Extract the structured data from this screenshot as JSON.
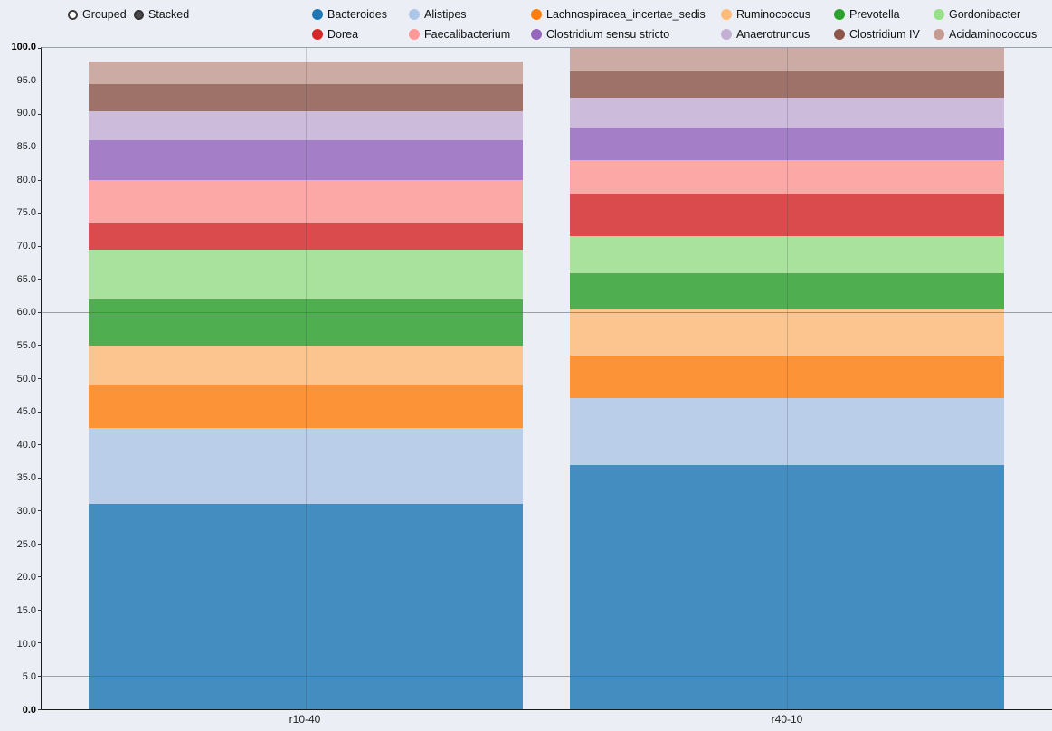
{
  "controls": {
    "options": [
      {
        "label": "Grouped",
        "selected": false
      },
      {
        "label": "Stacked",
        "selected": true
      }
    ]
  },
  "chart_data": {
    "type": "bar",
    "variant": "stacked-percentage",
    "title": "",
    "xlabel": "",
    "ylabel": "",
    "categories": [
      "r10-40",
      "r40-10"
    ],
    "series": [
      {
        "name": "Bacteroides",
        "color": "#1f77b4",
        "values": [
          31.0,
          37.0
        ]
      },
      {
        "name": "Alistipes",
        "color": "#aec7e8",
        "values": [
          11.5,
          10.0
        ]
      },
      {
        "name": "Lachnospiracea_incertae_sedis",
        "color": "#ff7f0e",
        "values": [
          6.5,
          6.5
        ]
      },
      {
        "name": "Ruminococcus",
        "color": "#ffbb78",
        "values": [
          6.0,
          7.0
        ]
      },
      {
        "name": "Prevotella",
        "color": "#2ca02c",
        "values": [
          7.0,
          5.5
        ]
      },
      {
        "name": "Gordonibacter",
        "color": "#98df8a",
        "values": [
          7.5,
          5.5
        ]
      },
      {
        "name": "Dorea",
        "color": "#d62728",
        "values": [
          4.0,
          6.5
        ]
      },
      {
        "name": "Faecalibacterium",
        "color": "#ff9896",
        "values": [
          6.5,
          5.0
        ]
      },
      {
        "name": "Clostridium sensu stricto",
        "color": "#9467bd",
        "values": [
          6.0,
          5.0
        ]
      },
      {
        "name": "Anaerotruncus",
        "color": "#c5b0d5",
        "values": [
          4.5,
          4.5
        ]
      },
      {
        "name": "Clostridium IV",
        "color": "#8c564b",
        "values": [
          4.0,
          4.0
        ]
      },
      {
        "name": "Acidaminococcus",
        "color": "#c49c94",
        "values": [
          3.5,
          3.5
        ]
      }
    ],
    "ylim": [
      0,
      100
    ],
    "ytick_step": 5,
    "ytick_decimals": 1,
    "reference_lines": [
      5,
      60
    ],
    "legend_position": "top",
    "grid": false
  }
}
